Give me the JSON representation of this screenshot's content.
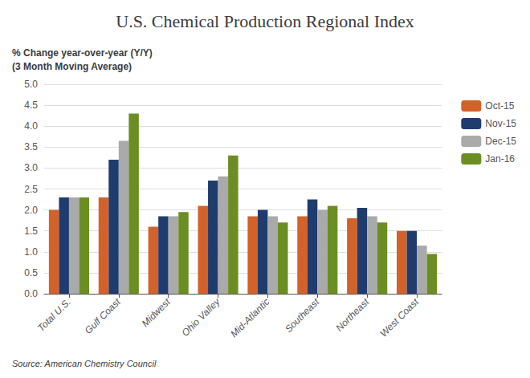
{
  "chart_data": {
    "type": "bar",
    "title": "U.S. Chemical Production Regional Index",
    "ylabel": "% Change year-over-year (Y/Y)\n(3 Month Moving Average)",
    "annotations": [
      "Source: American Chemistry Council"
    ],
    "categories": [
      "Total U.S.",
      "Gulf Coast",
      "Midwest",
      "Ohio Valley",
      "Mid-Atlantic",
      "Southeast",
      "Northeast",
      "West Coast"
    ],
    "series": [
      {
        "name": "Oct-15",
        "color": "#D2622A",
        "values": [
          2.0,
          2.3,
          1.6,
          2.1,
          1.85,
          1.85,
          1.8,
          1.5
        ]
      },
      {
        "name": "Nov-15",
        "color": "#1F3C6E",
        "values": [
          2.3,
          3.2,
          1.85,
          2.7,
          2.0,
          2.25,
          2.05,
          1.5
        ]
      },
      {
        "name": "Dec-15",
        "color": "#AAAAAA",
        "values": [
          2.3,
          3.65,
          1.85,
          2.8,
          1.85,
          2.0,
          1.85,
          1.15
        ]
      },
      {
        "name": "Jan-16",
        "color": "#6B8E23",
        "values": [
          2.3,
          4.3,
          1.95,
          3.3,
          1.7,
          2.1,
          1.7,
          0.95
        ]
      }
    ],
    "ylim": [
      0.0,
      5.0
    ],
    "yticks": [
      {
        "value": 0,
        "label": "0.0"
      },
      0.5,
      {
        "value": 1,
        "label": "1.0"
      },
      1.5,
      {
        "value": 2,
        "label": "2.0"
      },
      2.5,
      {
        "value": 3,
        "label": "3.0"
      },
      3.5,
      {
        "value": 4,
        "label": "4.0"
      },
      4.5,
      {
        "value": 5,
        "label": "5.0"
      }
    ],
    "grid": true,
    "legend": "right"
  }
}
